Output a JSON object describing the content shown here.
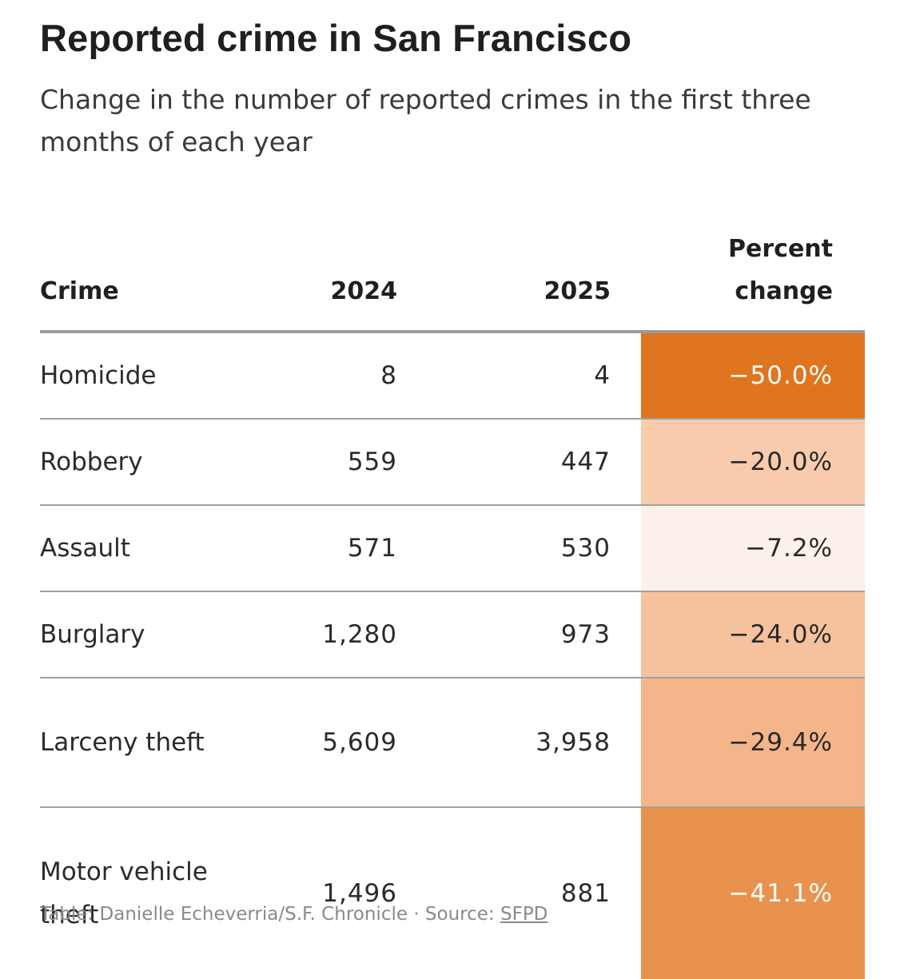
{
  "title": "Reported crime in San Francisco",
  "subtitle": "Change in the number of reported crimes in the first three months of each year",
  "table": {
    "headers": {
      "crime": "Crime",
      "y2024": "2024",
      "y2025": "2025",
      "pct_line1": "Percent",
      "pct_line2": "change"
    }
  },
  "chart_data": {
    "type": "table",
    "title": "Reported crime in San Francisco",
    "subtitle": "Change in the number of reported crimes in the first three months of each year",
    "columns": [
      "Crime",
      "2024",
      "2025",
      "Percent change"
    ],
    "rows": [
      {
        "crime": "Homicide",
        "y2024": "8",
        "y2025": "4",
        "pct": "−50.0%",
        "pct_value": -50.0,
        "fill": "#e07520",
        "text_color": "#ffffff"
      },
      {
        "crime": "Robbery",
        "y2024": "559",
        "y2025": "447",
        "pct": "−20.0%",
        "pct_value": -20.0,
        "fill": "#f8cbac",
        "text_color": "#2a2a2a"
      },
      {
        "crime": "Assault",
        "y2024": "571",
        "y2025": "530",
        "pct": "−7.2%",
        "pct_value": -7.2,
        "fill": "#fcf1ea",
        "text_color": "#2a2a2a"
      },
      {
        "crime": "Burglary",
        "y2024": "1,280",
        "y2025": "973",
        "pct": "−24.0%",
        "pct_value": -24.0,
        "fill": "#f6c19d",
        "text_color": "#2a2a2a"
      },
      {
        "crime": "Larceny theft",
        "y2024": "5,609",
        "y2025": "3,958",
        "pct": "−29.4%",
        "pct_value": -29.4,
        "fill": "#f4b58a",
        "text_color": "#2a2a2a"
      },
      {
        "crime": "Motor vehicle theft",
        "y2024": "1,496",
        "y2025": "881",
        "pct": "−41.1%",
        "pct_value": -41.1,
        "fill": "#e9924d",
        "text_color": "#ffffff"
      }
    ]
  },
  "footer": {
    "credit": "Table: Danielle Echeverria/S.F. Chronicle · Source: ",
    "source_link": "SFPD"
  }
}
